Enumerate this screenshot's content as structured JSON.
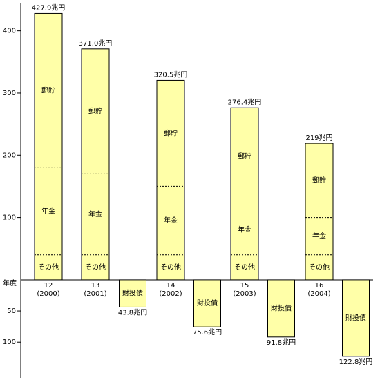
{
  "chart_data": {
    "type": "stacked_bar",
    "y_axis_label": "年度",
    "categories": [
      "12",
      "13",
      "14",
      "15",
      "16"
    ],
    "years": [
      "(2000)",
      "(2001)",
      "(2002)",
      "(2003)",
      "(2004)"
    ],
    "series": [
      {
        "name": "その他",
        "color": "#ffffa8",
        "values": [
          40,
          40,
          40,
          40,
          40
        ]
      },
      {
        "name": "年金",
        "color": "#ffffa8",
        "values": [
          140,
          130,
          110,
          80,
          60
        ]
      },
      {
        "name": "郵貯",
        "color": "#ffffa8",
        "values": [
          247.9,
          201,
          170.5,
          156.4,
          119
        ]
      }
    ],
    "totals": [
      427.9,
      371.0,
      320.5,
      276.4,
      219
    ],
    "total_labels": [
      "427.9兆円",
      "371.0兆円",
      "320.5兆円",
      "276.4兆円",
      "219兆円"
    ],
    "negative": {
      "name": "財投債",
      "color": "#ffffa8",
      "values": [
        -43.8,
        -75.6,
        -91.8,
        -122.8
      ],
      "value_labels": [
        "43.8兆円",
        "75.6兆円",
        "91.8兆円",
        "122.8兆円"
      ]
    },
    "ylim": [
      -157,
      445
    ],
    "yticks": [
      {
        "value": -100,
        "label": "100"
      },
      {
        "value": -50,
        "label": "50"
      },
      100,
      200,
      300,
      400
    ]
  }
}
